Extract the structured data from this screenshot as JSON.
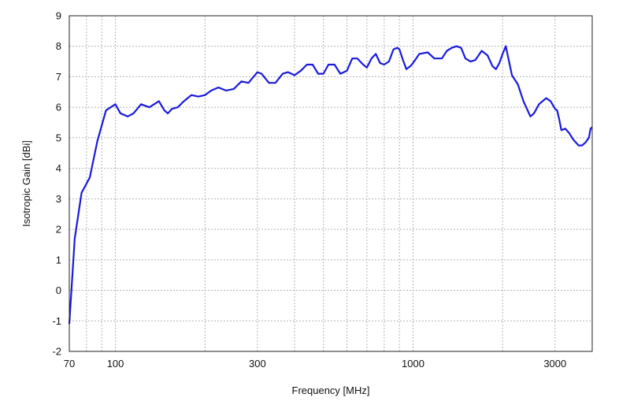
{
  "chart_data": {
    "type": "line",
    "title": "",
    "xlabel": "Frequency [MHz]",
    "ylabel": "Isotropic Gain [dBi]",
    "x_scale": "log",
    "xlim": [
      70,
      4000
    ],
    "ylim": [
      -2,
      9
    ],
    "x_tick_values": [
      70,
      100,
      300,
      1000,
      3000
    ],
    "x_tick_labels": [
      "70",
      "100",
      "300",
      "1000",
      "3000"
    ],
    "x_grid_values": [
      70,
      80,
      90,
      100,
      200,
      300,
      400,
      500,
      600,
      700,
      800,
      900,
      1000,
      2000,
      3000
    ],
    "y_ticks": [
      -2,
      -1,
      0,
      1,
      2,
      3,
      4,
      5,
      6,
      7,
      8,
      9
    ],
    "grid": true,
    "line_color": "#1a1adb",
    "series": [
      {
        "x": [
          70,
          73,
          77,
          82,
          87,
          93,
          100,
          104,
          110,
          115,
          122,
          130,
          140,
          146,
          150,
          155,
          162,
          170,
          180,
          190,
          200,
          210,
          222,
          235,
          250,
          265,
          280,
          300,
          310,
          328,
          345,
          365,
          380,
          400,
          420,
          440,
          460,
          480,
          500,
          520,
          545,
          570,
          600,
          625,
          650,
          680,
          700,
          725,
          750,
          775,
          800,
          830,
          860,
          885,
          900,
          925,
          950,
          980,
          1000,
          1050,
          1120,
          1180,
          1250,
          1300,
          1350,
          1400,
          1450,
          1500,
          1560,
          1620,
          1700,
          1780,
          1850,
          1900,
          1950,
          2000,
          2050,
          2150,
          2250,
          2350,
          2480,
          2550,
          2650,
          2800,
          2900,
          3000,
          3050,
          3100,
          3150,
          3250,
          3350,
          3450,
          3600,
          3700,
          3800,
          3900,
          3950,
          4000
        ],
        "y": [
          -1.1,
          1.7,
          3.2,
          3.7,
          4.9,
          5.9,
          6.1,
          5.8,
          5.7,
          5.8,
          6.1,
          6.0,
          6.2,
          5.9,
          5.8,
          5.95,
          6.0,
          6.2,
          6.4,
          6.35,
          6.4,
          6.55,
          6.65,
          6.55,
          6.6,
          6.85,
          6.8,
          7.15,
          7.1,
          6.8,
          6.8,
          7.1,
          7.15,
          7.05,
          7.2,
          7.4,
          7.4,
          7.1,
          7.1,
          7.4,
          7.4,
          7.1,
          7.2,
          7.6,
          7.6,
          7.4,
          7.3,
          7.6,
          7.75,
          7.45,
          7.4,
          7.5,
          7.9,
          7.95,
          7.9,
          7.55,
          7.25,
          7.35,
          7.45,
          7.75,
          7.8,
          7.6,
          7.6,
          7.85,
          7.95,
          8.0,
          7.95,
          7.6,
          7.5,
          7.55,
          7.85,
          7.7,
          7.35,
          7.25,
          7.45,
          7.75,
          8.0,
          7.05,
          6.75,
          6.2,
          5.7,
          5.8,
          6.1,
          6.3,
          6.2,
          5.95,
          5.9,
          5.6,
          5.25,
          5.3,
          5.15,
          4.95,
          4.75,
          4.75,
          4.85,
          5.0,
          5.3,
          5.35
        ]
      }
    ]
  }
}
